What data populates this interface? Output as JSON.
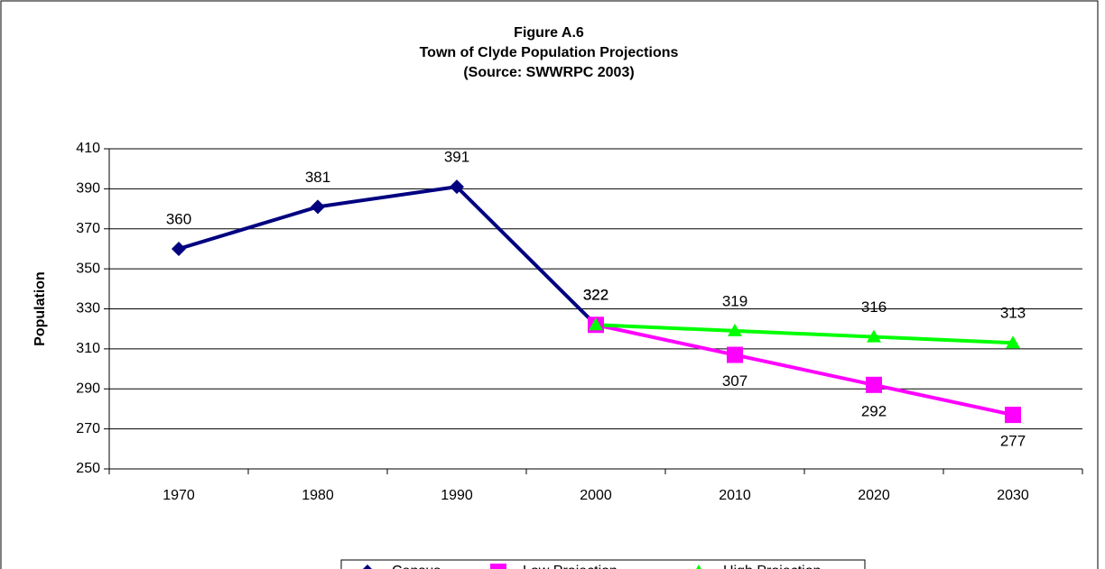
{
  "chart_data": {
    "type": "line",
    "title": [
      "Figure A.6",
      "Town of Clyde Population Projections",
      "(Source:  SWWRPC 2003)"
    ],
    "ylabel": "Population",
    "categories": [
      "1970",
      "1980",
      "1990",
      "2000",
      "2010",
      "2020",
      "2030"
    ],
    "series": [
      {
        "name": "Census",
        "color": "#000080",
        "marker": "diamond",
        "values": [
          360,
          381,
          391,
          322,
          null,
          null,
          null
        ]
      },
      {
        "name": "Low Projection",
        "color": "#ff00ff",
        "marker": "square",
        "values": [
          null,
          null,
          null,
          322,
          307,
          292,
          277
        ]
      },
      {
        "name": "High Projection",
        "color": "#00ff00",
        "marker": "triangle",
        "values": [
          null,
          null,
          null,
          322,
          319,
          316,
          313
        ]
      }
    ],
    "ylim": [
      250,
      410
    ],
    "yticks": [
      250,
      270,
      290,
      310,
      330,
      350,
      370,
      390,
      410
    ],
    "grid": true,
    "legend": "bottom"
  }
}
